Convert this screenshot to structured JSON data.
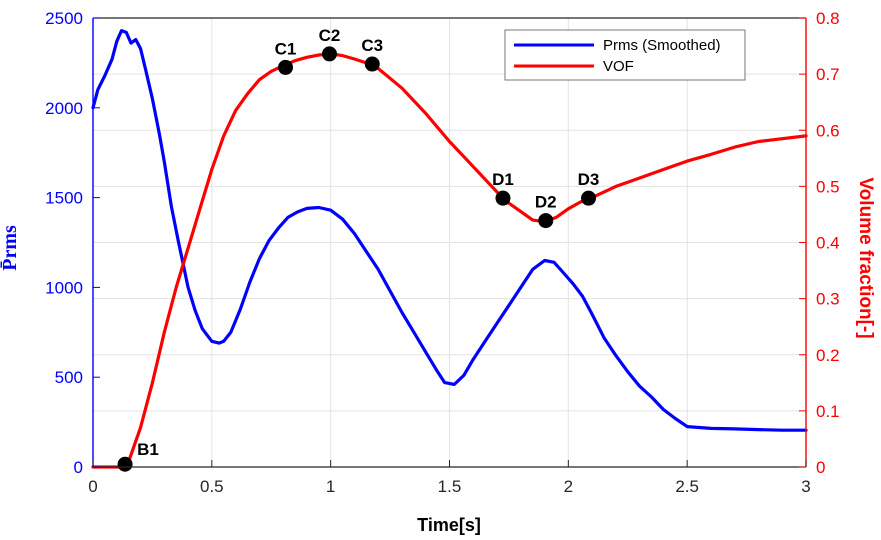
{
  "chart_data": {
    "type": "line",
    "xlabel": "Time[s]",
    "ylabel_left": "P̄rms",
    "ylabel_right": "Volume fraction[-]",
    "xlim": [
      0,
      3
    ],
    "ylim_left": [
      0,
      2500
    ],
    "ylim_right": [
      0,
      0.8
    ],
    "x_ticks": [
      0,
      0.5,
      1,
      1.5,
      2,
      2.5,
      3
    ],
    "x_tick_labels": [
      "0",
      "0.5",
      "1",
      "1.5",
      "2",
      "2.5",
      "3"
    ],
    "y_left_ticks": [
      0,
      500,
      1000,
      1500,
      2000,
      2500
    ],
    "y_left_tick_labels": [
      "0",
      "500",
      "1000",
      "1500",
      "2000",
      "2500"
    ],
    "y_right_ticks": [
      0,
      0.1,
      0.2,
      0.3,
      0.4,
      0.5,
      0.6,
      0.7,
      0.8
    ],
    "y_right_tick_labels": [
      "0",
      "0.1",
      "0.2",
      "0.3",
      "0.4",
      "0.5",
      "0.6",
      "0.7",
      "0.8"
    ],
    "grid": true,
    "legend_position": "top-right",
    "colors": {
      "prms": "#0000ff",
      "vof": "#ff0000",
      "axis_left": "#0000ff",
      "axis_right": "#ff0000",
      "grid": "#e3e3e3",
      "marker": "#000000"
    },
    "series": [
      {
        "name": "Prms (Smoothed)",
        "axis": "left",
        "color": "#0000ff",
        "x": [
          0,
          0.02,
          0.05,
          0.08,
          0.1,
          0.12,
          0.14,
          0.16,
          0.18,
          0.2,
          0.22,
          0.25,
          0.28,
          0.3,
          0.33,
          0.36,
          0.4,
          0.43,
          0.46,
          0.5,
          0.53,
          0.55,
          0.58,
          0.62,
          0.66,
          0.7,
          0.74,
          0.78,
          0.82,
          0.86,
          0.9,
          0.95,
          1.0,
          1.05,
          1.1,
          1.15,
          1.2,
          1.25,
          1.3,
          1.35,
          1.4,
          1.45,
          1.48,
          1.52,
          1.56,
          1.6,
          1.65,
          1.7,
          1.75,
          1.8,
          1.85,
          1.9,
          1.94,
          1.98,
          2.02,
          2.06,
          2.1,
          2.15,
          2.2,
          2.25,
          2.3,
          2.35,
          2.4,
          2.45,
          2.5,
          2.6,
          2.7,
          2.8,
          2.9,
          3.0
        ],
        "values": [
          2000,
          2100,
          2180,
          2270,
          2370,
          2430,
          2420,
          2360,
          2380,
          2330,
          2220,
          2050,
          1850,
          1700,
          1450,
          1250,
          1000,
          870,
          770,
          700,
          690,
          700,
          750,
          880,
          1030,
          1160,
          1260,
          1330,
          1390,
          1420,
          1440,
          1445,
          1430,
          1380,
          1300,
          1200,
          1100,
          980,
          860,
          750,
          640,
          530,
          470,
          460,
          510,
          600,
          700,
          800,
          900,
          1000,
          1100,
          1150,
          1140,
          1080,
          1020,
          950,
          850,
          720,
          620,
          530,
          450,
          390,
          320,
          270,
          225,
          215,
          212,
          208,
          205,
          205
        ]
      },
      {
        "name": "VOF",
        "axis": "right",
        "color": "#ff0000",
        "x": [
          0,
          0.05,
          0.1,
          0.13,
          0.15,
          0.2,
          0.25,
          0.3,
          0.35,
          0.4,
          0.45,
          0.5,
          0.55,
          0.6,
          0.65,
          0.7,
          0.75,
          0.8,
          0.85,
          0.9,
          0.95,
          1.0,
          1.05,
          1.1,
          1.15,
          1.2,
          1.3,
          1.4,
          1.5,
          1.6,
          1.7,
          1.75,
          1.8,
          1.85,
          1.9,
          1.95,
          2.0,
          2.05,
          2.1,
          2.2,
          2.3,
          2.4,
          2.5,
          2.6,
          2.7,
          2.8,
          2.9,
          3.0
        ],
        "values": [
          0,
          0,
          0,
          0,
          0.01,
          0.07,
          0.15,
          0.24,
          0.32,
          0.39,
          0.46,
          0.53,
          0.59,
          0.635,
          0.665,
          0.69,
          0.705,
          0.715,
          0.724,
          0.73,
          0.734,
          0.736,
          0.733,
          0.727,
          0.72,
          0.71,
          0.675,
          0.63,
          0.58,
          0.535,
          0.49,
          0.47,
          0.455,
          0.44,
          0.437,
          0.445,
          0.46,
          0.472,
          0.48,
          0.5,
          0.515,
          0.53,
          0.545,
          0.557,
          0.57,
          0.58,
          0.585,
          0.59
        ]
      }
    ],
    "annotations": [
      {
        "label": "B1",
        "x": 0.135,
        "y": 0.005
      },
      {
        "label": "C1",
        "x": 0.81,
        "y": 0.712
      },
      {
        "label": "C2",
        "x": 0.995,
        "y": 0.736
      },
      {
        "label": "C3",
        "x": 1.175,
        "y": 0.718
      },
      {
        "label": "D1",
        "x": 1.725,
        "y": 0.479
      },
      {
        "label": "D2",
        "x": 1.905,
        "y": 0.439
      },
      {
        "label": "D3",
        "x": 2.085,
        "y": 0.479
      }
    ]
  }
}
